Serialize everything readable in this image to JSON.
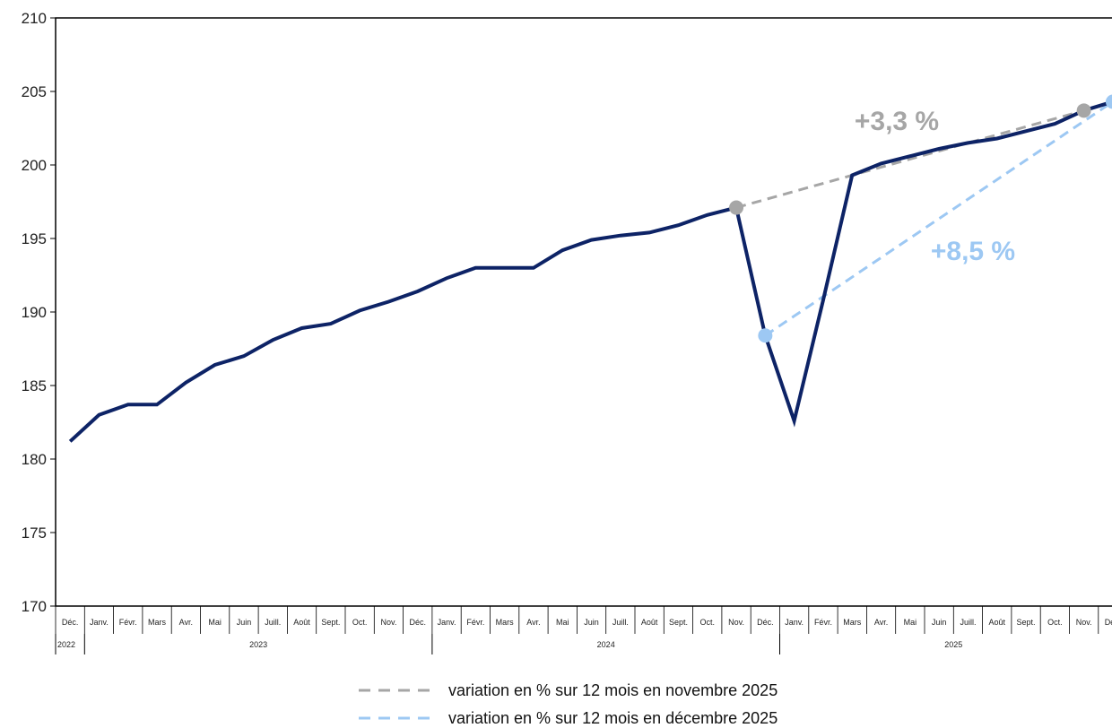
{
  "chart_data": {
    "type": "line",
    "title": "",
    "xlabel": "",
    "ylabel": "",
    "ylim": [
      170,
      210
    ],
    "yticks": [
      170,
      175,
      180,
      185,
      190,
      195,
      200,
      205,
      210
    ],
    "grid": false,
    "categories": [
      "Déc.",
      "Janv.",
      "Févr.",
      "Mars",
      "Avr.",
      "Mai",
      "Juin",
      "Juill.",
      "Août",
      "Sept.",
      "Oct.",
      "Nov.",
      "Déc.",
      "Janv.",
      "Févr.",
      "Mars",
      "Avr.",
      "Mai",
      "Juin",
      "Juill.",
      "Août",
      "Sept.",
      "Oct.",
      "Nov.",
      "Déc.",
      "Janv.",
      "Févr.",
      "Mars",
      "Avr.",
      "Mai",
      "Juin",
      "Juill.",
      "Août",
      "Sept.",
      "Oct.",
      "Nov.",
      "Déc."
    ],
    "years": [
      {
        "label": "2022",
        "start": 0,
        "end": 0
      },
      {
        "label": "2023",
        "start": 1,
        "end": 12
      },
      {
        "label": "2024",
        "start": 13,
        "end": 24
      },
      {
        "label": "2025",
        "start": 25,
        "end": 36
      }
    ],
    "series": [
      {
        "values": [
          181.2,
          183.0,
          183.7,
          183.7,
          185.2,
          186.4,
          187.0,
          188.1,
          188.9,
          189.2,
          190.1,
          190.7,
          191.4,
          192.3,
          193.0,
          193.0,
          193.0,
          194.2,
          194.9,
          195.2,
          195.4,
          195.9,
          196.6,
          197.1,
          188.4,
          182.6,
          190.8,
          199.3,
          200.1,
          200.6,
          201.1,
          201.5,
          201.8,
          202.3,
          202.8,
          203.7,
          204.3
        ],
        "color": "#0d2366"
      }
    ],
    "variations": [
      {
        "from_index": 23,
        "to_index": 35,
        "label": "+3,3 %",
        "color": "#a6a6a6",
        "legend": "variation en % sur 12 mois en novembre 2025"
      },
      {
        "from_index": 24,
        "to_index": 36,
        "label": "+8,5 %",
        "color": "#9dc8f3",
        "legend": "variation en % sur 12 mois en décembre 2025"
      }
    ]
  }
}
